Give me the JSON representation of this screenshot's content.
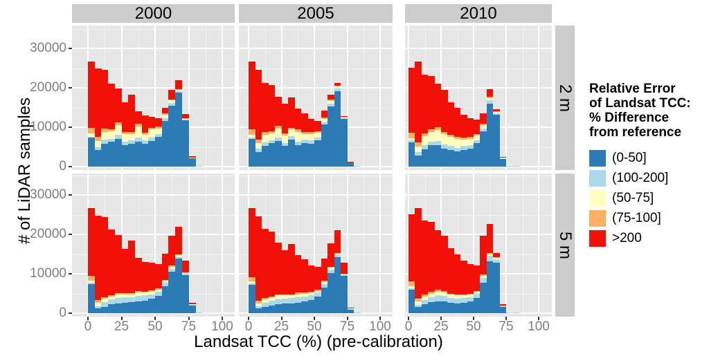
{
  "axes": {
    "x": {
      "title": "Landsat TCC (%) (pre-calibration)",
      "ticks": [
        0,
        25,
        50,
        75,
        100
      ]
    },
    "y": {
      "title": "# of LiDAR samples",
      "ticks": [
        0,
        10000,
        20000,
        30000
      ]
    }
  },
  "legend": {
    "title_lines": [
      "Relative Error",
      "of Landsat TCC:",
      "% Difference",
      "from reference"
    ],
    "items": [
      {
        "label": "(0-50]",
        "color": "#2C7BB6"
      },
      {
        "label": "(100-200]",
        "color": "#ABD9E9"
      },
      {
        "label": "(50-75]",
        "color": "#FFFFBF"
      },
      {
        "label": "(75-100]",
        "color": "#FDAE61"
      },
      {
        "label": ">200",
        "color": "#F21107"
      }
    ]
  },
  "chart_data": {
    "type": "bar",
    "stacked": true,
    "title": "",
    "xlabel": "Landsat TCC (%) (pre-calibration)",
    "ylabel": "# of LiDAR samples",
    "xlim": [
      -12,
      110
    ],
    "ylim": [
      0,
      35800
    ],
    "grid": true,
    "legend_position": "right",
    "facets": {
      "cols": [
        "2000",
        "2005",
        "2010"
      ],
      "rows": [
        "2 m",
        "5 m"
      ]
    },
    "bin_width": 5,
    "bin_starts": [
      0,
      5,
      10,
      15,
      20,
      25,
      30,
      35,
      40,
      45,
      50,
      55,
      60,
      65,
      70,
      75,
      80
    ],
    "series_order": [
      "(0-50]",
      "(100-200]",
      "(50-75]",
      "(75-100]",
      ">200"
    ],
    "colors": {
      "(0-50]": "#2C7BB6",
      "(100-200]": "#ABD9E9",
      "(50-75]": "#FFFFBF",
      "(75-100]": "#FDAE61",
      ">200": "#F21107"
    },
    "panels": [
      {
        "year": "2000",
        "height": "2 m",
        "series": {
          "(0-50]": [
            7300,
            4200,
            5800,
            6300,
            7000,
            5500,
            5800,
            6300,
            5800,
            6500,
            7500,
            11500,
            15500,
            18700,
            11800,
            2200,
            150
          ],
          "(100-200]": [
            300,
            800,
            1000,
            800,
            1000,
            800,
            800,
            1000,
            800,
            900,
            800,
            700,
            600,
            400,
            200,
            100,
            100
          ],
          "(50-75]": [
            800,
            1500,
            2000,
            1800,
            2500,
            2000,
            1600,
            2800,
            1500,
            2000,
            1300,
            900,
            700,
            400,
            200,
            50,
            0
          ],
          "(75-100]": [
            1500,
            1000,
            800,
            600,
            700,
            500,
            500,
            800,
            500,
            500,
            500,
            400,
            300,
            200,
            100,
            0,
            0
          ],
          ">200": [
            16700,
            17400,
            14900,
            11600,
            8600,
            7500,
            9600,
            3100,
            4400,
            2800,
            2200,
            1500,
            2400,
            2200,
            1000,
            300,
            0
          ]
        }
      },
      {
        "year": "2005",
        "height": "2 m",
        "series": {
          "(0-50]": [
            7000,
            3700,
            5200,
            5900,
            6500,
            5200,
            6800,
            5400,
            6000,
            5800,
            6700,
            10700,
            15300,
            19200,
            12200,
            1100,
            100
          ],
          "(100-200]": [
            300,
            800,
            1000,
            800,
            900,
            800,
            900,
            900,
            800,
            800,
            700,
            600,
            700,
            600,
            150,
            50,
            100
          ],
          "(50-75]": [
            700,
            1400,
            1900,
            1700,
            2300,
            1900,
            1700,
            2500,
            1400,
            1700,
            1200,
            800,
            600,
            500,
            150,
            50,
            0
          ],
          "(75-100]": [
            1400,
            900,
            700,
            600,
            700,
            500,
            500,
            700,
            500,
            400,
            400,
            400,
            400,
            300,
            50,
            0,
            0
          ],
          ">200": [
            17200,
            17800,
            12500,
            11700,
            7400,
            7600,
            7600,
            5200,
            4900,
            3400,
            2600,
            1800,
            1300,
            600,
            250,
            100,
            0
          ]
        }
      },
      {
        "year": "2010",
        "height": "2 m",
        "series": {
          "(0-50]": [
            6200,
            2800,
            4400,
            5400,
            5400,
            4600,
            4200,
            3800,
            4300,
            4600,
            5900,
            8900,
            16000,
            13200,
            2000,
            200,
            100
          ],
          "(100-200]": [
            400,
            900,
            1100,
            1000,
            1100,
            1000,
            1000,
            1000,
            900,
            900,
            800,
            700,
            800,
            400,
            100,
            50,
            100
          ],
          "(50-75]": [
            600,
            1400,
            2200,
            2400,
            2800,
            2600,
            2400,
            2200,
            1700,
            1600,
            1200,
            900,
            600,
            300,
            100,
            50,
            0
          ],
          "(75-100]": [
            1400,
            1000,
            800,
            700,
            700,
            600,
            500,
            500,
            400,
            400,
            400,
            400,
            300,
            100,
            0,
            0,
            0
          ],
          ">200": [
            16500,
            20500,
            14900,
            13500,
            11000,
            10700,
            8300,
            7400,
            5900,
            4800,
            3700,
            2700,
            1900,
            600,
            200,
            0,
            0
          ]
        }
      },
      {
        "year": "2000",
        "height": "5 m",
        "series": {
          "(0-50]": [
            7400,
            1300,
            1600,
            2200,
            2400,
            2600,
            2800,
            2900,
            3200,
            3600,
            4400,
            6800,
            10500,
            13800,
            9700,
            2000,
            150
          ],
          "(100-200]": [
            300,
            500,
            1200,
            1300,
            1500,
            1400,
            1300,
            1500,
            1300,
            1200,
            1000,
            900,
            800,
            500,
            300,
            100,
            100
          ],
          "(50-75]": [
            500,
            900,
            900,
            800,
            900,
            800,
            700,
            900,
            700,
            700,
            600,
            500,
            500,
            400,
            200,
            100,
            0
          ],
          "(75-100]": [
            1200,
            600,
            400,
            300,
            300,
            300,
            300,
            400,
            300,
            300,
            300,
            300,
            300,
            200,
            100,
            0,
            0
          ],
          ">200": [
            17200,
            21500,
            20300,
            16600,
            14700,
            11300,
            13400,
            8300,
            7500,
            7000,
            6100,
            6600,
            7600,
            7000,
            3000,
            500,
            0
          ]
        }
      },
      {
        "year": "2005",
        "height": "5 m",
        "series": {
          "(0-50]": [
            7200,
            1200,
            1500,
            2000,
            2200,
            2400,
            2500,
            2600,
            3000,
            3400,
            4200,
            6500,
            10200,
            14200,
            9400,
            1000,
            100
          ],
          "(100-200]": [
            300,
            500,
            1100,
            1200,
            1400,
            1300,
            1300,
            1400,
            1200,
            1100,
            1000,
            900,
            800,
            500,
            300,
            100,
            100
          ],
          "(50-75]": [
            500,
            800,
            900,
            800,
            900,
            800,
            700,
            800,
            700,
            600,
            500,
            500,
            500,
            400,
            200,
            100,
            0
          ],
          "(75-100]": [
            1200,
            600,
            400,
            300,
            300,
            300,
            300,
            400,
            300,
            300,
            300,
            300,
            300,
            200,
            100,
            0,
            0
          ],
          ">200": [
            17400,
            21500,
            17500,
            16400,
            13100,
            11200,
            12700,
            9500,
            8500,
            6700,
            5700,
            5600,
            6000,
            5700,
            2800,
            200,
            0
          ]
        }
      },
      {
        "year": "2010",
        "height": "5 m",
        "series": {
          "(0-50]": [
            6000,
            1500,
            2200,
            2800,
            3000,
            3000,
            2600,
            2400,
            2600,
            3000,
            3900,
            7800,
            13200,
            12800,
            1600,
            200,
            100
          ],
          "(100-200]": [
            400,
            600,
            1200,
            1300,
            1500,
            1400,
            1300,
            1300,
            1200,
            1100,
            1000,
            1100,
            1300,
            800,
            200,
            50,
            100
          ],
          "(50-75]": [
            500,
            800,
            900,
            900,
            1000,
            900,
            800,
            800,
            700,
            600,
            500,
            600,
            500,
            400,
            100,
            50,
            0
          ],
          "(75-100]": [
            1200,
            700,
            500,
            400,
            400,
            400,
            300,
            300,
            300,
            300,
            300,
            400,
            300,
            200,
            100,
            0,
            0
          ],
          ">200": [
            17000,
            23000,
            18700,
            17700,
            15200,
            13900,
            11500,
            10200,
            8500,
            7400,
            6400,
            9800,
            7300,
            1100,
            300,
            0,
            0
          ]
        }
      }
    ]
  },
  "style_colors": {
    "panel_background": "#E6E6E6",
    "strip_background": "#CCCCCC",
    "grid_line": "#FFFFFF",
    "tick_text": "#7E7E7E",
    "axis_text": "#000000"
  }
}
